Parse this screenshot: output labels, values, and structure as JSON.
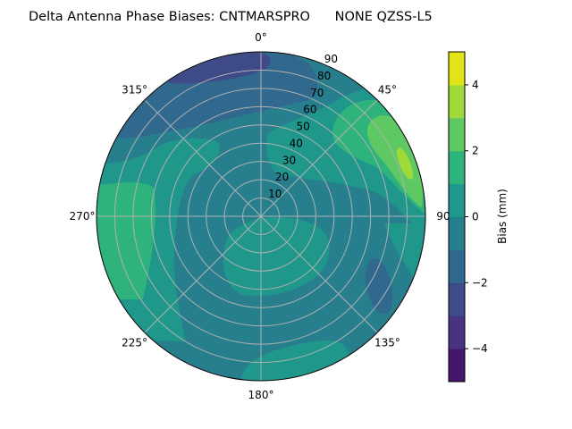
{
  "chart_data": {
    "type": "polar-contour",
    "title": "Delta Antenna Phase Biases: CNTMARSPRO      NONE QZSS-L5",
    "angular_axis": {
      "direction": "clockwise",
      "zero_location": "top",
      "tick_labels": [
        "0°",
        "45°",
        "90",
        "135°",
        "180°",
        "225°",
        "270°",
        "315°"
      ],
      "tick_values": [
        0,
        45,
        90,
        135,
        180,
        225,
        270,
        315
      ]
    },
    "radial_axis": {
      "range": [
        0,
        90
      ],
      "tick_values": [
        10,
        20,
        30,
        40,
        50,
        60,
        70,
        80,
        90
      ],
      "tick_labels": [
        "10",
        "20",
        "30",
        "40",
        "50",
        "60",
        "70",
        "80",
        "90"
      ]
    },
    "grid": true,
    "colorbar": {
      "label": "Bias (mm)",
      "range": [
        -5,
        5
      ],
      "levels": [
        -5,
        -4,
        -3,
        -2,
        -1,
        0,
        1,
        2,
        3,
        4,
        5
      ],
      "tick_values": [
        -4,
        -2,
        0,
        2,
        4
      ],
      "tick_labels": [
        "−4",
        "−2",
        "0",
        "2",
        "4"
      ],
      "colormap": "viridis",
      "band_colors": [
        "#46166b",
        "#48337e",
        "#3f4a89",
        "#31688e",
        "#277f8e",
        "#1f988b",
        "#2fb37d",
        "#5ec962",
        "#9fda3a",
        "#e2e418"
      ],
      "placement": "right"
    },
    "regions": [
      {
        "level_range": [
          -1,
          0
        ],
        "location": "background / center"
      },
      {
        "level_range": [
          -3,
          -2
        ],
        "location": "north-northwest, elevation 70-90"
      },
      {
        "level_range": [
          -2,
          -1
        ],
        "location": "north and southeast edge"
      },
      {
        "level_range": [
          0,
          1
        ],
        "location": "northeast, south-center, south edge, west"
      },
      {
        "level_range": [
          1,
          2
        ],
        "location": "west edge, northeast"
      },
      {
        "level_range": [
          2,
          3
        ],
        "location": "east-northeast edge"
      },
      {
        "level_range": [
          3,
          4
        ],
        "location": "east-northeast edge, small"
      }
    ]
  }
}
